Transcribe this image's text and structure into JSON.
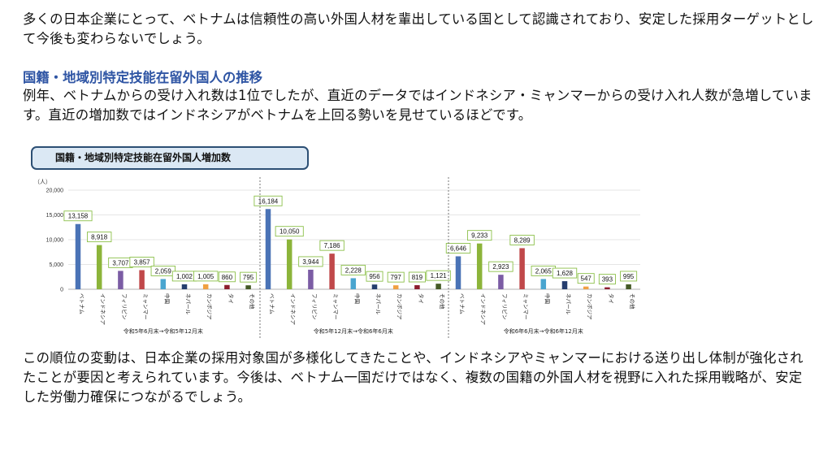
{
  "intro": "多くの日本企業にとって、ベトナムは信頼性の高い外国人材を輩出している国として認識されており、安定した採用ターゲットとして今後も変わらないでしょう。",
  "heading": "国籍・地域別特定技能在留外国人の推移",
  "body1": "例年、ベトナムからの受け入れ数は1位でしたが、直近のデータではインドネシア・ミャンマーからの受け入れ人数が急増しています。直近の増加数ではインドネシアがベトナムを上回る勢いを見せているほどです。",
  "body2": "この順位の変動は、日本企業の採用対象国が多様化してきたことや、インドネシアやミャンマーにおける送り出し体制が強化されたことが要因と考えられています。今後は、ベトナム一国だけではなく、複数の国籍の外国人材を視野に入れた採用戦略が、安定した労働力確保につながるでしょう。",
  "chart_data": {
    "type": "bar",
    "title": "国籍・地域別特定技能在留外国人増加数",
    "ylabel": "（人）",
    "ylim": [
      0,
      20000
    ],
    "yticks": [
      "0",
      "5,000",
      "10,000",
      "15,000",
      "20,000"
    ],
    "categories": [
      "ベトナム",
      "インドネシア",
      "フィリピン",
      "ミャンマー",
      "中国",
      "ネパール",
      "カンボジア",
      "タイ",
      "その他"
    ],
    "colors": [
      "#4a73b6",
      "#8cb43a",
      "#7b5ca4",
      "#c0484a",
      "#4aa5cf",
      "#263e6e",
      "#f0a042",
      "#8c1e2e",
      "#455a26"
    ],
    "groups": [
      {
        "period": "令和5年6月末→令和5年12月末",
        "values": [
          13158,
          8918,
          3707,
          3857,
          2059,
          1002,
          1005,
          860,
          795
        ],
        "labels": [
          "13,158",
          "8,918",
          "3,707",
          "3,857",
          "2,059",
          "1,002",
          "1,005",
          "860",
          "795"
        ]
      },
      {
        "period": "令和5年12月末→令和6年6月末",
        "values": [
          16184,
          10050,
          3944,
          7186,
          2228,
          956,
          797,
          819,
          1121
        ],
        "labels": [
          "16,184",
          "10,050",
          "3,944",
          "7,186",
          "2,228",
          "956",
          "797",
          "819",
          "1,121"
        ]
      },
      {
        "period": "令和6年6月末→令和6年12月末",
        "values": [
          6646,
          9233,
          2923,
          8289,
          2065,
          1628,
          547,
          393,
          995
        ],
        "labels": [
          "6,646",
          "9,233",
          "2,923",
          "8,289",
          "2,065",
          "1,628",
          "547",
          "393",
          "995"
        ]
      }
    ]
  }
}
